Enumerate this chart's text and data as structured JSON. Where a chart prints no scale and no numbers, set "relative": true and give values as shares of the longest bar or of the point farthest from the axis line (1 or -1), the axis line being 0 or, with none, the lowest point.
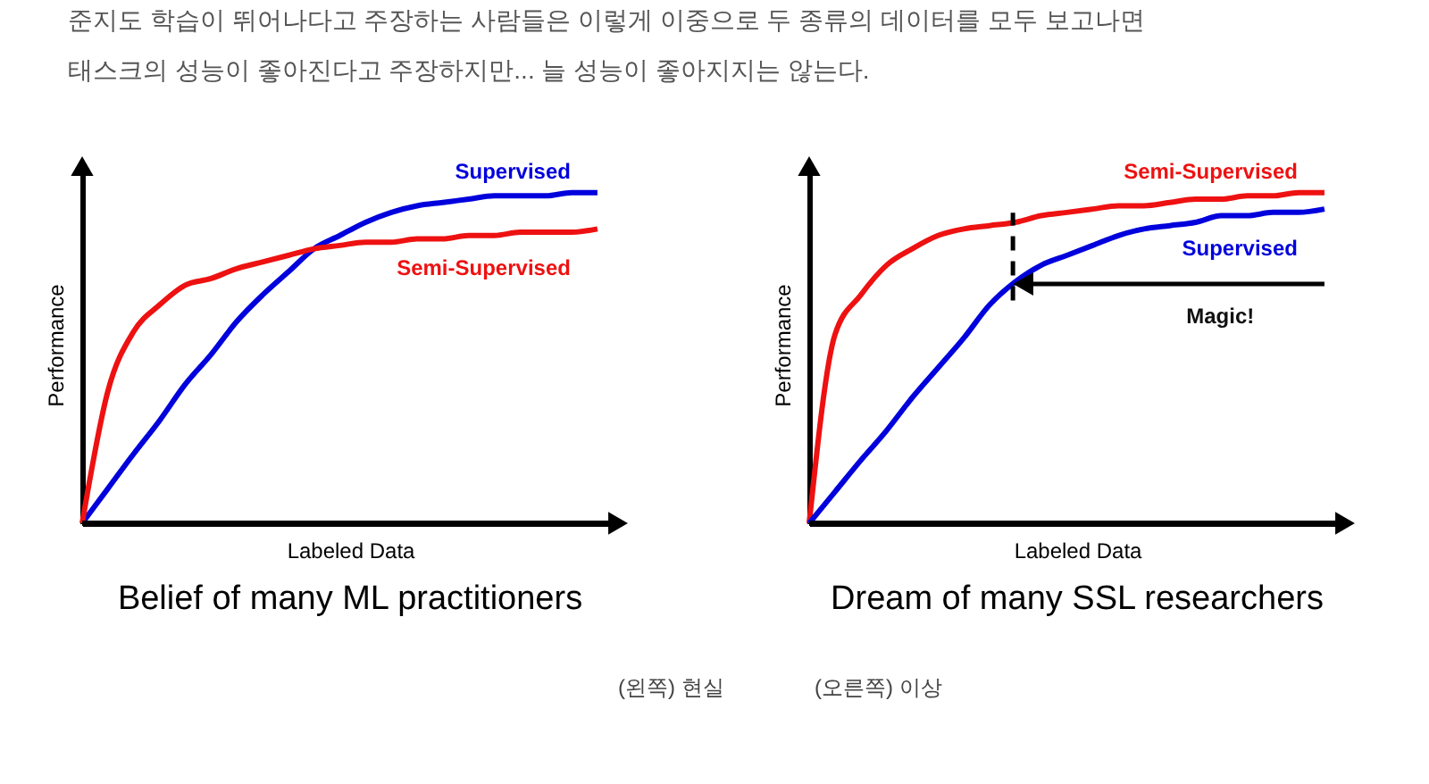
{
  "chart_data": [
    {
      "type": "line",
      "title": "Belief of many ML practitioners",
      "xlabel": "Labeled Data",
      "ylabel": "Performance",
      "relative": true,
      "categories": [
        null,
        null,
        null,
        null,
        null,
        null,
        null,
        null,
        null,
        null,
        null,
        null,
        null,
        null,
        null,
        null,
        null,
        null,
        null,
        null,
        null
      ],
      "series": [
        {
          "name": "Supervised",
          "color": "#0000dd",
          "values": [
            0,
            0.105,
            0.21,
            0.31,
            0.42,
            0.51,
            0.61,
            0.69,
            0.76,
            0.83,
            0.87,
            0.91,
            0.94,
            0.96,
            0.97,
            0.98,
            0.99,
            0.99,
            0.99,
            1,
            1
          ]
        },
        {
          "name": "Semi-Supervised",
          "color": "#ee1111",
          "values": [
            0,
            0.4,
            0.58,
            0.66,
            0.72,
            0.74,
            0.77,
            0.79,
            0.81,
            0.83,
            0.84,
            0.85,
            0.85,
            0.86,
            0.86,
            0.87,
            0.87,
            0.88,
            0.88,
            0.88,
            0.89
          ]
        }
      ],
      "annotations": [
        "준지도 학습이 뛰어나다고 주장하는 사람들은 이렇게 이중으로 두 종류의 데이터를 모두 보고나면",
        "태스크의 성능이 좋아진다고 주장하지만... 늘 성능이 좋아지지는 않는다.",
        "(왼쪽) 현실"
      ]
    },
    {
      "type": "line",
      "title": "Dream of many SSL researchers",
      "xlabel": "Labeled Data",
      "ylabel": "Performance",
      "relative": true,
      "categories": [
        null,
        null,
        null,
        null,
        null,
        null,
        null,
        null,
        null,
        null,
        null,
        null,
        null,
        null,
        null,
        null,
        null,
        null,
        null,
        null,
        null
      ],
      "series": [
        {
          "name": "Semi-Supervised",
          "color": "#ee1111",
          "values": [
            0,
            0.57,
            0.69,
            0.78,
            0.83,
            0.87,
            0.89,
            0.9,
            0.91,
            0.93,
            0.94,
            0.95,
            0.96,
            0.96,
            0.97,
            0.98,
            0.98,
            0.99,
            0.99,
            1,
            1
          ]
        },
        {
          "name": "Supervised",
          "color": "#0000dd",
          "values": [
            0,
            0.095,
            0.19,
            0.28,
            0.38,
            0.47,
            0.56,
            0.66,
            0.73,
            0.78,
            0.81,
            0.84,
            0.87,
            0.89,
            0.9,
            0.91,
            0.93,
            0.93,
            0.94,
            0.94,
            0.95
          ]
        }
      ],
      "annotations": [
        "Magic!",
        "(오른쪽) 이상"
      ]
    }
  ]
}
